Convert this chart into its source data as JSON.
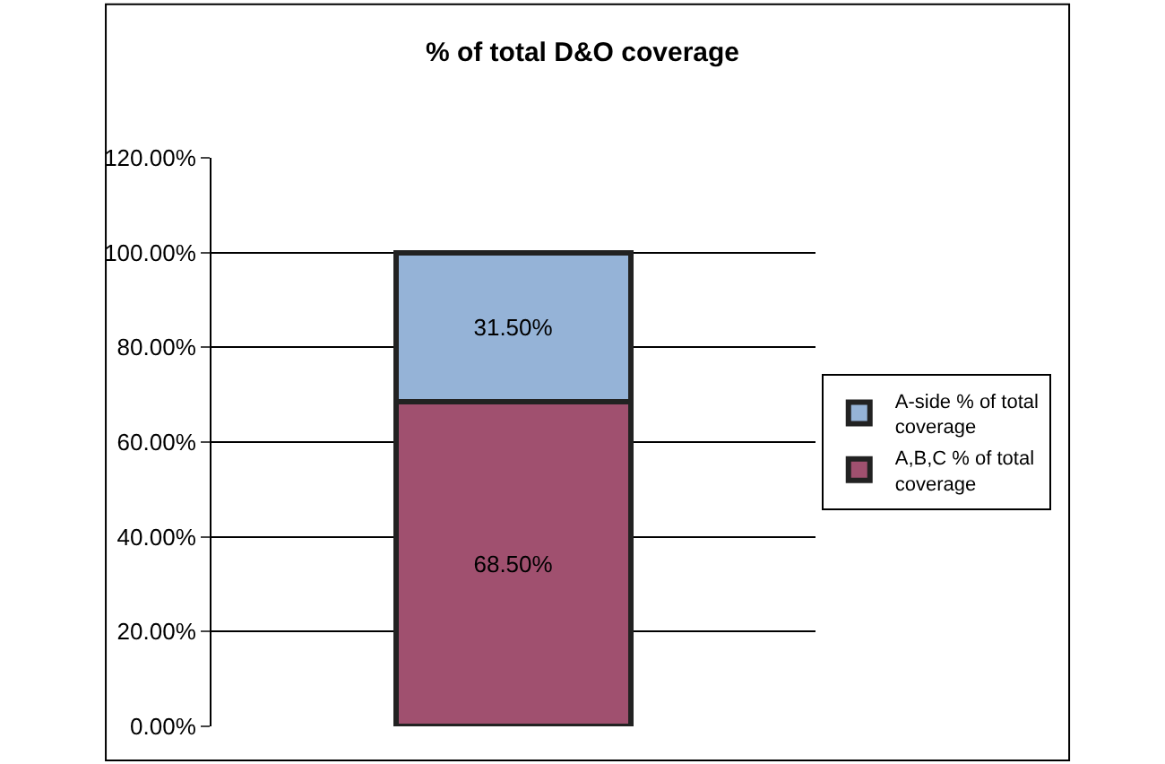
{
  "chart_data": {
    "type": "bar",
    "title": "% of total D&O coverage",
    "categories": [
      null
    ],
    "stacked": true,
    "series": [
      {
        "name": "A,B,C % of total coverage",
        "color": "#a0506f",
        "values": [
          68.5
        ],
        "value_labels": [
          "68.50%"
        ]
      },
      {
        "name": "A-side % of total coverage",
        "color": "#95b3d7",
        "values": [
          31.5
        ],
        "value_labels": [
          "31.50%"
        ]
      }
    ],
    "ylim": [
      0,
      120
    ],
    "yticks": [
      {
        "value": 0,
        "label": "0.00%"
      },
      {
        "value": 20,
        "label": "20.00%"
      },
      {
        "value": 40,
        "label": "40.00%"
      },
      {
        "value": 60,
        "label": "60.00%"
      },
      {
        "value": 80,
        "label": "80.00%"
      },
      {
        "value": 100,
        "label": "100.00%"
      },
      {
        "value": 120,
        "label": "120.00%"
      }
    ],
    "grid": "y",
    "legend": "right"
  }
}
